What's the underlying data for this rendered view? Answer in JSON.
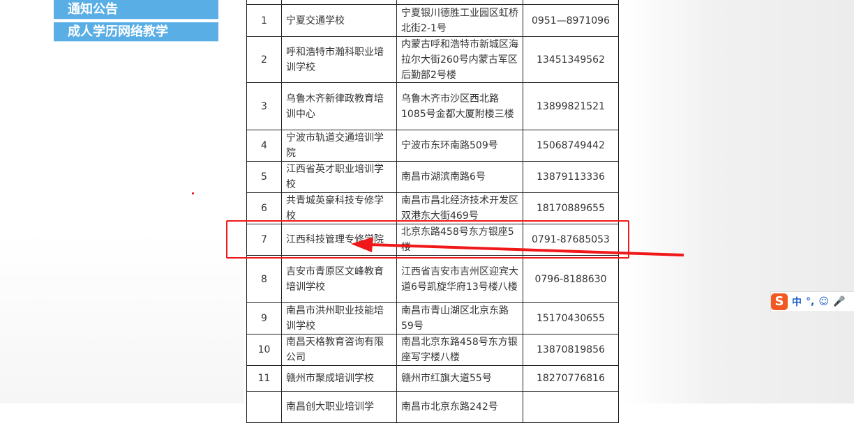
{
  "sidebar": {
    "items": [
      {
        "label": "通知公告"
      },
      {
        "label": "成人学历网络教学"
      }
    ]
  },
  "table": {
    "rows": [
      {
        "no": "",
        "school": "",
        "address": "",
        "phone": ""
      },
      {
        "no": "1",
        "school": "宁夏交通学校",
        "address": "宁夏银川德胜工业园区虹桥北街2-1号",
        "phone": "0951—8971096"
      },
      {
        "no": "2",
        "school": "呼和浩特市瀚科职业培训学校",
        "address": "内蒙古呼和浩特市新城区海拉尔大街260号内蒙古军区后勤部2号楼",
        "phone": "13451349562"
      },
      {
        "no": "3",
        "school": "乌鲁木齐新律政教育培训中心",
        "address": "乌鲁木齐市沙区西北路1085号金都大厦附楼三楼",
        "phone": "13899821521"
      },
      {
        "no": "4",
        "school": "宁波市轨道交通培训学院",
        "address": "宁波市东环南路509号",
        "phone": "15068749442"
      },
      {
        "no": "5",
        "school": "江西省英才职业培训学校",
        "address": "南昌市湖滨南路6号",
        "phone": "13879113336"
      },
      {
        "no": "6",
        "school": "共青城英豪科技专修学校",
        "address": "南昌市昌北经济技术开发区双港东大街469号",
        "phone": "18170889655"
      },
      {
        "no": "7",
        "school": "江西科技管理专修学院",
        "address": "北京东路458号东方银座5楼",
        "phone": "0791-87685053"
      },
      {
        "no": "8",
        "school": "吉安市青原区文峰教育培训学校",
        "address": "江西省吉安市吉州区迎宾大道6号凯旋华府13号楼八楼",
        "phone": "0796-8188630"
      },
      {
        "no": "9",
        "school": "南昌市洪州职业技能培训学校",
        "address": "南昌市青山湖区北京东路59号",
        "phone": "15170430655"
      },
      {
        "no": "10",
        "school": "南昌天格教育咨询有限公司",
        "address": "南昌北京东路458号东方银座写字楼八楼",
        "phone": "13870819856"
      },
      {
        "no": "11",
        "school": "赣州市聚成培训学校",
        "address": "赣州市红旗大道55号",
        "phone": "18270776816"
      },
      {
        "no": "",
        "school": "南昌创大职业培训学",
        "address": "南昌市北京东路242号",
        "phone": ""
      }
    ]
  },
  "annotation": {
    "color": "#f01818"
  },
  "ime": {
    "logo": "S",
    "lang": "中",
    "punct": "°,"
  }
}
